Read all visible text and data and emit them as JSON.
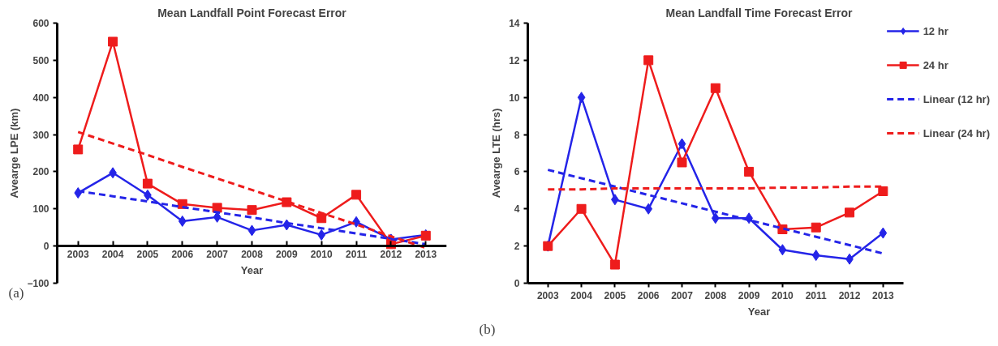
{
  "chart_data": [
    {
      "type": "line",
      "title": "Mean Landfall Point Forecast Error",
      "xlabel": "Year",
      "ylabel": "Avearge LPE (km)",
      "categories": [
        "2003",
        "2004",
        "2005",
        "2006",
        "2007",
        "2008",
        "2009",
        "2010",
        "2011",
        "2012",
        "2013"
      ],
      "ylim": [
        -100,
        600
      ],
      "yticks": [
        -100,
        0,
        100,
        200,
        300,
        400,
        500,
        600
      ],
      "grid": false,
      "legend": false,
      "annotations": [
        "(a)"
      ],
      "series": [
        {
          "color": "#2424e8",
          "marker": "diamond",
          "line_style": "solid",
          "values": [
            143,
            197,
            137,
            67,
            78,
            42,
            57,
            30,
            65,
            18,
            30
          ]
        },
        {
          "color": "#ee1c1c",
          "marker": "square",
          "line_style": "solid",
          "values": [
            260,
            550,
            168,
            113,
            103,
            97,
            118,
            75,
            138,
            5,
            28
          ]
        },
        {
          "color": "#2424e8",
          "marker": "none",
          "line_style": "dashed",
          "values": [
            148,
            134,
            120,
            105,
            91,
            77,
            62,
            48,
            34,
            19,
            5
          ]
        },
        {
          "color": "#ee1c1c",
          "marker": "none",
          "line_style": "dashed",
          "values": [
            307,
            276,
            245,
            213,
            182,
            151,
            120,
            89,
            58,
            26,
            -5
          ]
        }
      ]
    },
    {
      "type": "line",
      "title": "Mean Landfall Time Forecast Error",
      "xlabel": "Year",
      "ylabel": "Avearge LTE (hrs)",
      "categories": [
        "2003",
        "2004",
        "2005",
        "2006",
        "2007",
        "2008",
        "2009",
        "2010",
        "2011",
        "2012",
        "2013"
      ],
      "ylim": [
        0,
        14
      ],
      "yticks": [
        0,
        2,
        4,
        6,
        8,
        10,
        12,
        14
      ],
      "grid": false,
      "legend": "right",
      "annotations": [
        "(b)"
      ],
      "series": [
        {
          "name": "12 hr",
          "color": "#2424e8",
          "marker": "diamond",
          "line_style": "solid",
          "values": [
            2,
            10,
            4.5,
            4,
            7.5,
            3.5,
            3.5,
            1.8,
            1.5,
            1.3,
            2.7
          ]
        },
        {
          "name": "24 hr",
          "color": "#ee1c1c",
          "marker": "square",
          "line_style": "solid",
          "values": [
            2,
            4,
            1,
            12,
            6.5,
            10.5,
            6,
            2.9,
            3,
            3.8,
            4.95
          ]
        },
        {
          "name": "Linear (12 hr)",
          "color": "#2424e8",
          "marker": "none",
          "line_style": "dashed",
          "values": [
            6.1,
            5.65,
            5.2,
            4.75,
            4.3,
            3.85,
            3.4,
            2.95,
            2.5,
            2.05,
            1.6
          ]
        },
        {
          "name": "Linear (24 hr)",
          "color": "#ee1c1c",
          "marker": "none",
          "line_style": "dashed",
          "values": [
            5.05,
            5.05,
            5.1,
            5.1,
            5.1,
            5.1,
            5.1,
            5.15,
            5.15,
            5.2,
            5.2
          ]
        }
      ]
    }
  ]
}
